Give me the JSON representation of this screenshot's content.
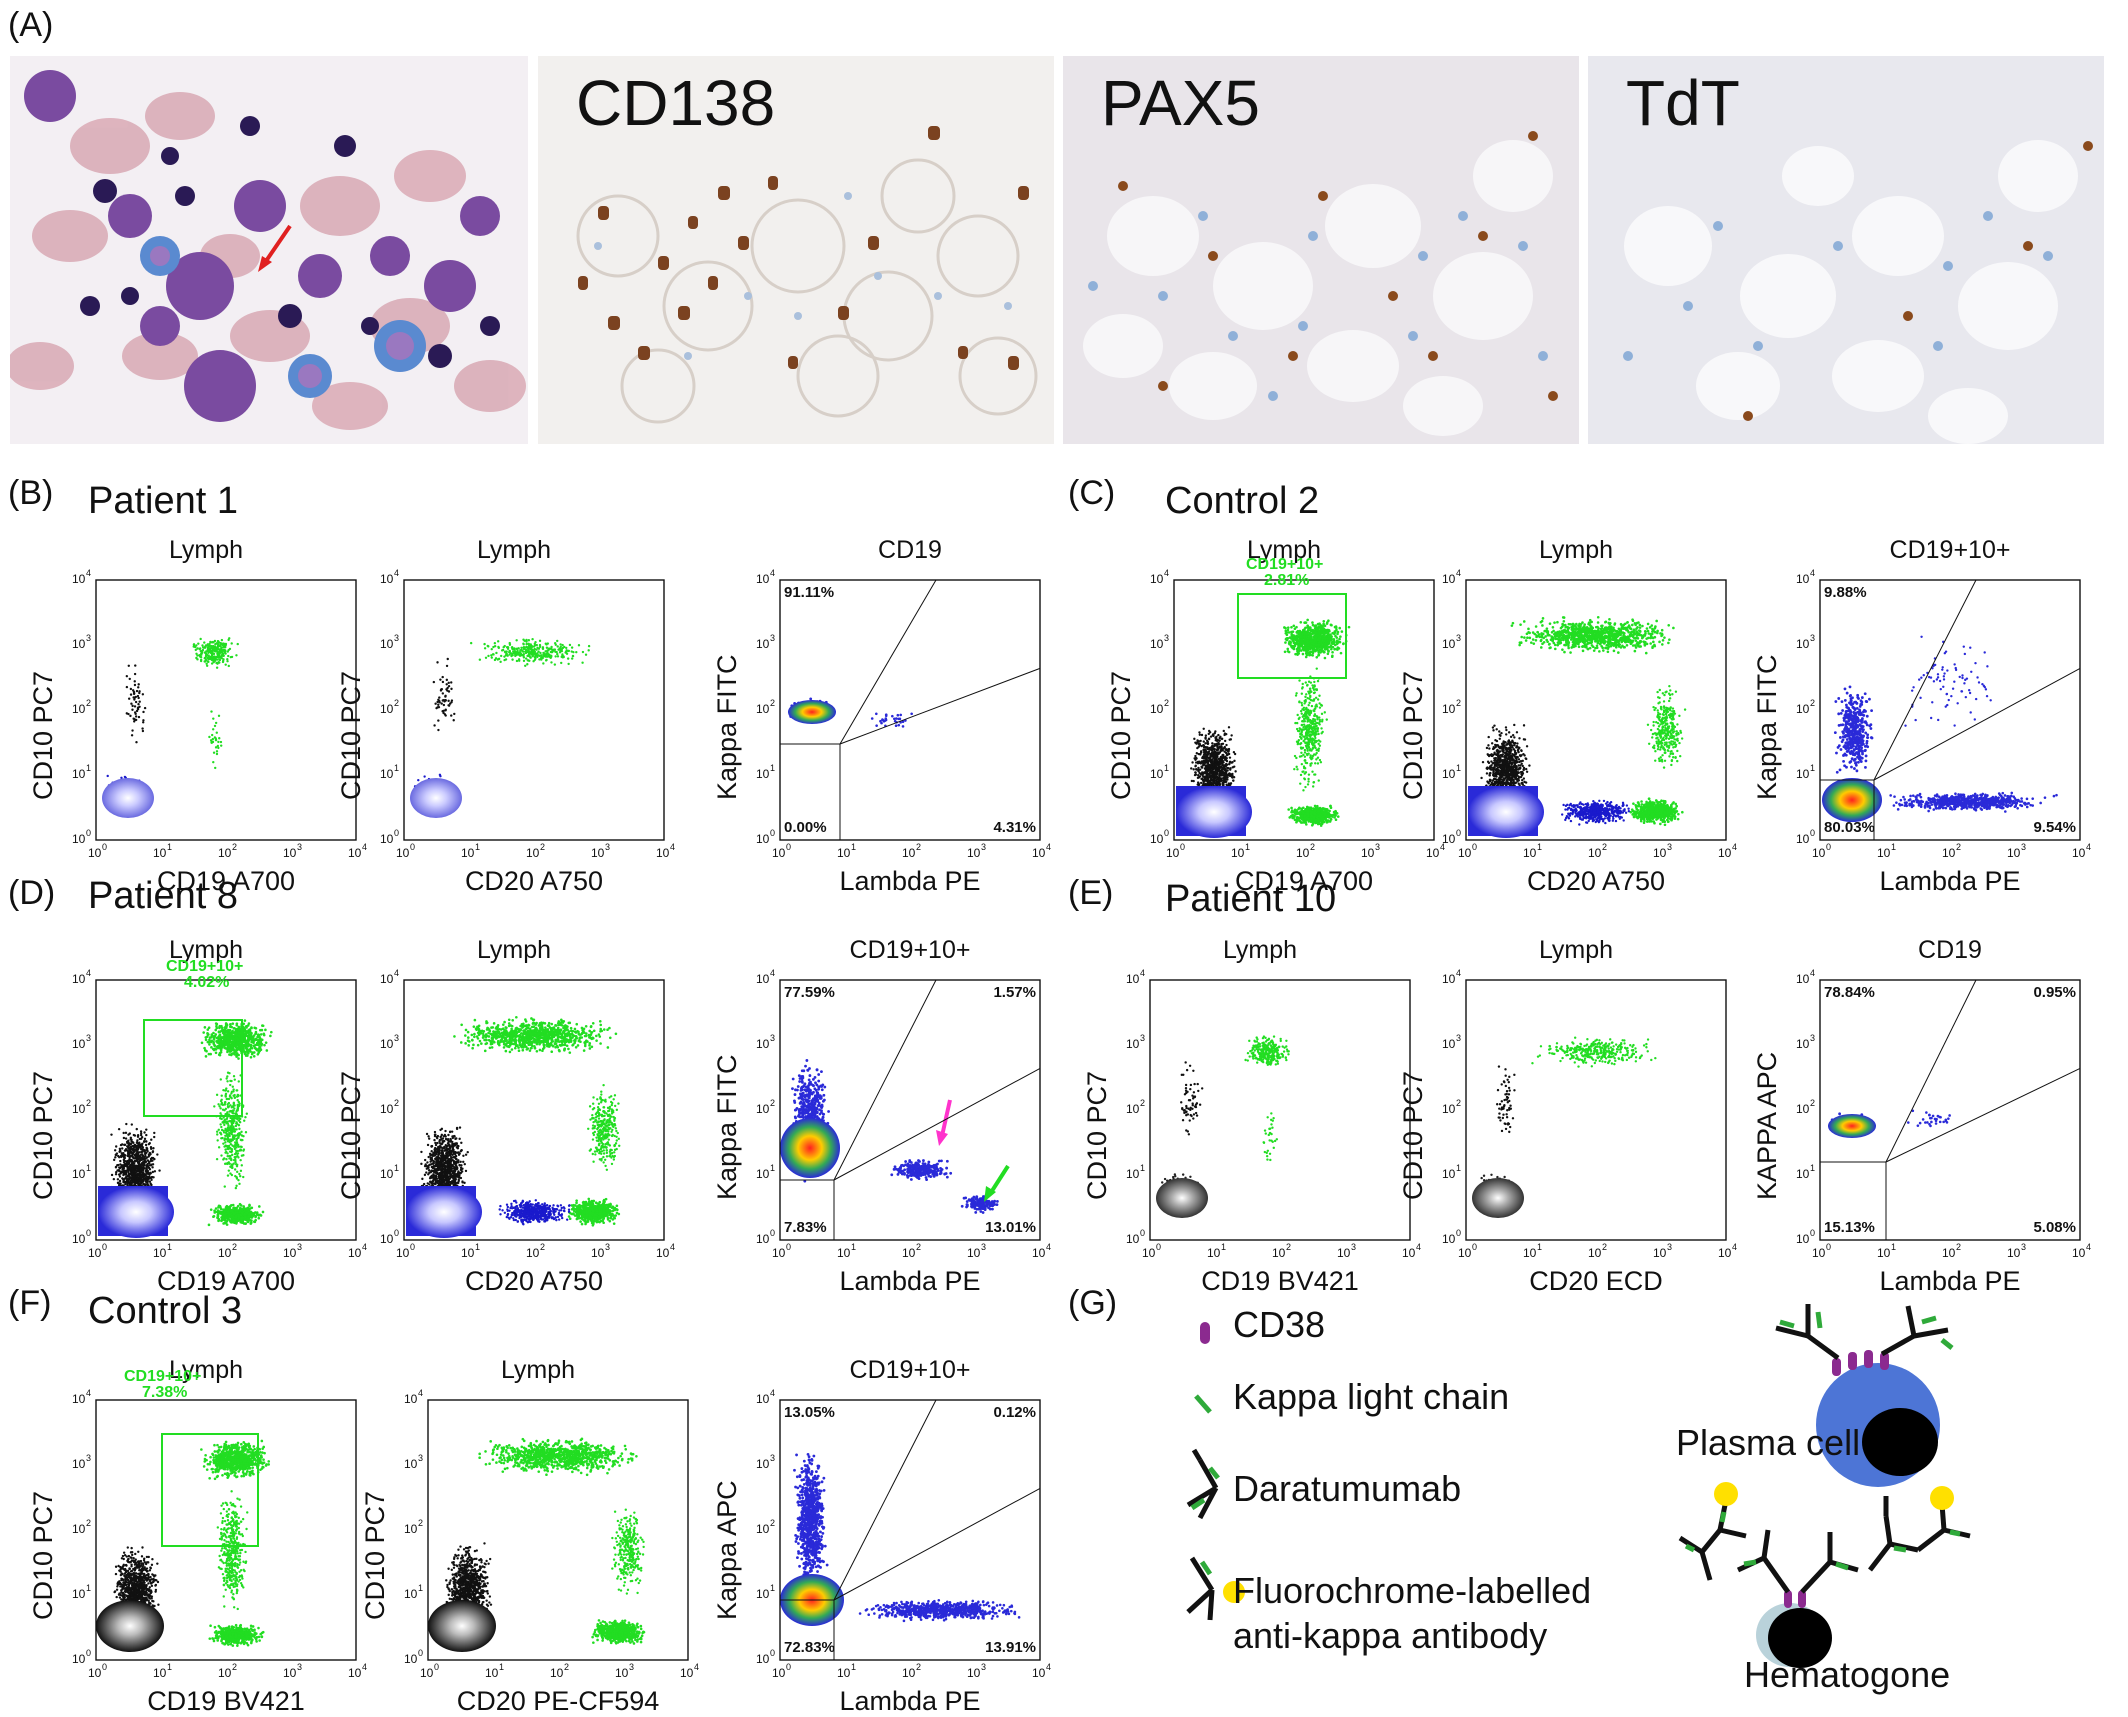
{
  "panels": {
    "A": {
      "label": "(A)",
      "images": [
        {
          "stain": ""
        },
        {
          "stain": "CD138"
        },
        {
          "stain": "PAX5"
        },
        {
          "stain": "TdT"
        }
      ]
    },
    "B": {
      "label": "(B)",
      "title": "Patient 1"
    },
    "C": {
      "label": "(C)",
      "title": "Control 2"
    },
    "D": {
      "label": "(D)",
      "title": "Patient 8"
    },
    "E": {
      "label": "(E)",
      "title": "Patient 10"
    },
    "F": {
      "label": "(F)",
      "title": "Control 3"
    },
    "G": {
      "label": "(G)"
    }
  },
  "ticks": [
    "10",
    "0",
    "10",
    "1",
    "10",
    "2",
    "10",
    "3",
    "10",
    "4"
  ],
  "plots": {
    "B1": {
      "title": "Lymph",
      "xlabel": "CD19 A700",
      "ylabel": "CD10 PC7"
    },
    "B2": {
      "title": "Lymph",
      "xlabel": "CD20 A750",
      "ylabel": "CD10 PC7"
    },
    "B3": {
      "title": "CD19",
      "xlabel": "Lambda PE",
      "ylabel": "Kappa FITC",
      "q_tl": "91.11%",
      "q_bl": "0.00%",
      "q_br": "4.31%"
    },
    "C1": {
      "title": "Lymph",
      "xlabel": "CD19 A700",
      "ylabel": "CD10 PC7",
      "gate_name": "CD19+10+",
      "gate_pct": "2.81%"
    },
    "C2": {
      "title": "Lymph",
      "xlabel": "CD20 A750",
      "ylabel": "CD10 PC7"
    },
    "C3": {
      "title": "CD19+10+",
      "xlabel": "Lambda PE",
      "ylabel": "Kappa FITC",
      "q_tl": "9.88%",
      "q_bl": "80.03%",
      "q_br": "9.54%"
    },
    "D1": {
      "title": "Lymph",
      "xlabel": "CD19 A700",
      "ylabel": "CD10 PC7",
      "gate_name": "CD19+10+",
      "gate_pct": "4.02%"
    },
    "D2": {
      "title": "Lymph",
      "xlabel": "CD20 A750",
      "ylabel": "CD10 PC7"
    },
    "D3": {
      "title": "CD19+10+",
      "xlabel": "Lambda PE",
      "ylabel": "Kappa FITC",
      "q_tl": "77.59%",
      "q_tr": "1.57%",
      "q_bl": "7.83%",
      "q_br": "13.01%"
    },
    "E1": {
      "title": "Lymph",
      "xlabel": "CD19 BV421",
      "ylabel": "CD10 PC7"
    },
    "E2": {
      "title": "Lymph",
      "xlabel": "CD20 ECD",
      "ylabel": "CD10 PC7"
    },
    "E3": {
      "title": "CD19",
      "xlabel": "Lambda PE",
      "ylabel": "KAPPA APC",
      "q_tl": "78.84%",
      "q_tr": "0.95%",
      "q_bl": "15.13%",
      "q_br": "5.08%"
    },
    "F1": {
      "title": "Lymph",
      "xlabel": "CD19 BV421",
      "ylabel": "CD10 PC7",
      "gate_name": "CD19+10+",
      "gate_pct": "7.38%"
    },
    "F2": {
      "title": "Lymph",
      "xlabel": "CD20 PE-CF594",
      "ylabel": "CD10 PC7"
    },
    "F3": {
      "title": "CD19+10+",
      "xlabel": "Lambda PE",
      "ylabel": "Kappa APC",
      "q_tl": "13.05%",
      "q_tr": "0.12%",
      "q_bl": "72.83%",
      "q_br": "13.91%"
    }
  },
  "legend": {
    "cd38": "CD38",
    "kappa": "Kappa light chain",
    "dara": "Daratumumab",
    "fluoro_1": "Fluorochrome-labelled",
    "fluoro_2": "anti-kappa antibody",
    "plasma": "Plasma cell",
    "hemato": "Hematogone"
  },
  "colors": {
    "green_gate": "#22dd22",
    "cd38": "#8b2a8f",
    "kappa": "#2faa3a",
    "fluoro": "#ffe000",
    "plasma_cell": "#4d75d6",
    "nucleus": "#000000",
    "hematogone": "#b9d2da"
  }
}
